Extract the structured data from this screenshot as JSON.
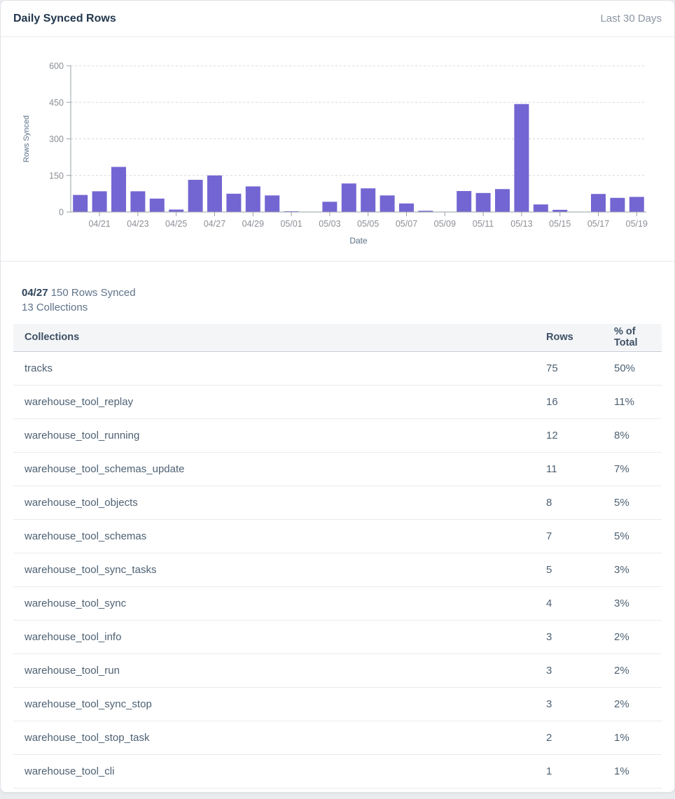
{
  "header": {
    "title": "Daily Synced Rows",
    "range": "Last 30 Days"
  },
  "chart_data": {
    "type": "bar",
    "title": "",
    "xlabel": "Date",
    "ylabel": "Rows Synced",
    "ylim": [
      0,
      600
    ],
    "yticks": [
      0,
      150,
      300,
      450,
      600
    ],
    "grid": "horizontal-dashed",
    "legend": "none",
    "bar_color": "#7366d2",
    "axis_color": "#9aa0a6",
    "gridline_color": "#d8d8d8",
    "tick_label_color": "#8b8f95",
    "axis_title_color": "#5c7089",
    "categories": [
      "04/20",
      "04/21",
      "04/22",
      "04/23",
      "04/24",
      "04/25",
      "04/26",
      "04/27",
      "04/28",
      "04/29",
      "04/30",
      "05/01",
      "05/02",
      "05/03",
      "05/04",
      "05/05",
      "05/06",
      "05/07",
      "05/08",
      "05/09",
      "05/10",
      "05/11",
      "05/12",
      "05/13",
      "05/14",
      "05/15",
      "05/16",
      "05/17",
      "05/18",
      "05/19"
    ],
    "values": [
      70,
      85,
      185,
      85,
      55,
      10,
      132,
      150,
      75,
      105,
      68,
      3,
      0,
      42,
      117,
      97,
      68,
      35,
      5,
      0,
      86,
      78,
      94,
      443,
      31,
      9,
      0,
      74,
      58,
      62
    ],
    "xtick_labels": [
      "04/21",
      "04/23",
      "04/25",
      "04/27",
      "04/29",
      "05/01",
      "05/03",
      "05/05",
      "05/07",
      "05/09",
      "05/11",
      "05/13",
      "05/15",
      "05/17",
      "05/19"
    ]
  },
  "detail": {
    "date": "04/27",
    "rows_synced": "150 Rows Synced",
    "collections": "13 Collections"
  },
  "table": {
    "columns": [
      "Collections",
      "Rows",
      "% of Total"
    ],
    "rows": [
      {
        "collection": "tracks",
        "rows": "75",
        "pct": "50%"
      },
      {
        "collection": "warehouse_tool_replay",
        "rows": "16",
        "pct": "11%"
      },
      {
        "collection": "warehouse_tool_running",
        "rows": "12",
        "pct": "8%"
      },
      {
        "collection": "warehouse_tool_schemas_update",
        "rows": "11",
        "pct": "7%"
      },
      {
        "collection": "warehouse_tool_objects",
        "rows": "8",
        "pct": "5%"
      },
      {
        "collection": "warehouse_tool_schemas",
        "rows": "7",
        "pct": "5%"
      },
      {
        "collection": "warehouse_tool_sync_tasks",
        "rows": "5",
        "pct": "3%"
      },
      {
        "collection": "warehouse_tool_sync",
        "rows": "4",
        "pct": "3%"
      },
      {
        "collection": "warehouse_tool_info",
        "rows": "3",
        "pct": "2%"
      },
      {
        "collection": "warehouse_tool_run",
        "rows": "3",
        "pct": "2%"
      },
      {
        "collection": "warehouse_tool_sync_stop",
        "rows": "3",
        "pct": "2%"
      },
      {
        "collection": "warehouse_tool_stop_task",
        "rows": "2",
        "pct": "1%"
      },
      {
        "collection": "warehouse_tool_cli",
        "rows": "1",
        "pct": "1%"
      }
    ]
  }
}
